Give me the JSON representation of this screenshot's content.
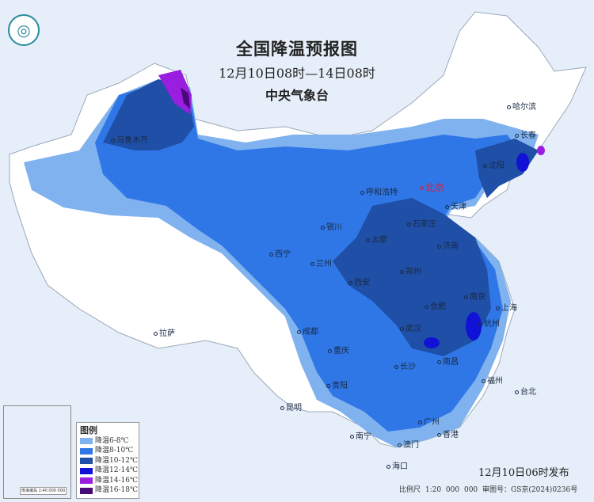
{
  "header": {
    "title": "全国降温预报图",
    "period": "12月10日08时—14日08时",
    "issuer": "中央气象台"
  },
  "logo": {
    "icon": "cma-logo"
  },
  "legend": {
    "title": "图例",
    "items": [
      {
        "label": "降温6-8℃",
        "color": "#7fb2ee"
      },
      {
        "label": "降温8-10℃",
        "color": "#2f77e6"
      },
      {
        "label": "降温10-12℃",
        "color": "#1f4fa6"
      },
      {
        "label": "降温12-14℃",
        "color": "#1212d6"
      },
      {
        "label": "降温14-16℃",
        "color": "#9a1ee0"
      },
      {
        "label": "降温16-18℃",
        "color": "#480a78"
      }
    ]
  },
  "cities": [
    "乌鲁木齐",
    "哈尔滨",
    "长春",
    "沈阳",
    "北京",
    "天津",
    "呼和浩特",
    "石家庄",
    "太原",
    "济南",
    "银川",
    "西宁",
    "兰州",
    "西安",
    "郑州",
    "合肥",
    "南京",
    "上海",
    "杭州",
    "武汉",
    "长沙",
    "南昌",
    "成都",
    "重庆",
    "贵阳",
    "昆明",
    "拉萨",
    "福州",
    "台北",
    "广州",
    "澳门",
    "香港",
    "南宁",
    "海口"
  ],
  "footer": {
    "issued": "12月10日06时发布",
    "scale": "比例尺 1:20 000 000",
    "map_no": "审图号：GS京(2024)0236号"
  },
  "inset": {
    "label": "南海诸岛 1:40 000 000"
  }
}
